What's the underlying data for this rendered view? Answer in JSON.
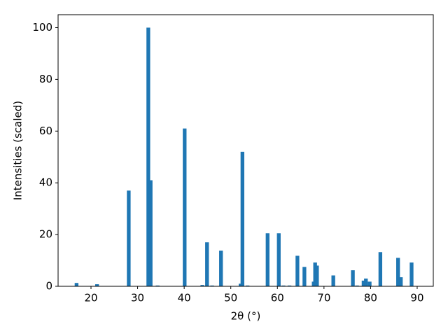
{
  "chart_data": {
    "type": "bar",
    "xlabel": "2θ (°)",
    "ylabel": "Intensities (scaled)",
    "x": [
      16.9,
      21.3,
      28.1,
      32.3,
      32.8,
      34.3,
      40.1,
      43.9,
      44.9,
      46.0,
      47.9,
      52.1,
      52.5,
      53.6,
      57.9,
      60.3,
      61.3,
      62.6,
      64.3,
      65.8,
      67.8,
      68.1,
      68.5,
      72.0,
      76.2,
      77.1,
      78.5,
      79.0,
      79.8,
      82.1,
      85.9,
      86.5,
      88.8
    ],
    "values": [
      1.3,
      0.8,
      37,
      100,
      41,
      0.3,
      61,
      0.5,
      17,
      0.3,
      13.8,
      1,
      52,
      0.3,
      20.5,
      20.5,
      0.3,
      0.3,
      11.8,
      7.5,
      1.8,
      9.2,
      8,
      4.2,
      6.2,
      0.3,
      2.2,
      3,
      1.8,
      13.2,
      11,
      3.5,
      9.2
    ],
    "bar_width": 0.8,
    "color": "#1f77b4",
    "xlim": [
      12.94,
      93.46
    ],
    "xticks": [
      20,
      30,
      40,
      50,
      60,
      70,
      80,
      90
    ],
    "ylim": [
      0,
      105
    ],
    "yticks": [
      0,
      20,
      40,
      60,
      80,
      100
    ]
  }
}
